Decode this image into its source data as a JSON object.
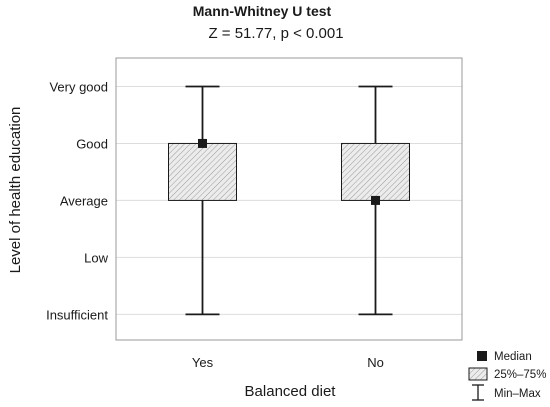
{
  "chart_data": {
    "type": "box",
    "title": "Mann-Whitney U test",
    "subtitle": "Z = 51.77,   p < 0.001",
    "xlabel": "Balanced diet",
    "ylabel": "Level of health education",
    "categories": [
      "Yes",
      "No"
    ],
    "y_ticks": [
      {
        "value": 1,
        "label": "Insufficient"
      },
      {
        "value": 2,
        "label": "Low"
      },
      {
        "value": 3,
        "label": "Average"
      },
      {
        "value": 4,
        "label": "Good"
      },
      {
        "value": 5,
        "label": "Very good"
      }
    ],
    "ylim": [
      0.55,
      5.5
    ],
    "grid": true,
    "boxes": [
      {
        "category": "Yes",
        "min": 1,
        "q1": 3,
        "median": 4,
        "q3": 4,
        "max": 5
      },
      {
        "category": "No",
        "min": 1,
        "q1": 3,
        "median": 3,
        "q3": 4,
        "max": 5
      }
    ],
    "legend": {
      "position": "bottom-right",
      "items": [
        {
          "label": "Median",
          "symbol": "square"
        },
        {
          "label": "25%–75%",
          "symbol": "hatched-box"
        },
        {
          "label": "Min–Max",
          "symbol": "whisker"
        }
      ]
    },
    "colors": {
      "box_fill": "#ececec",
      "hatch": "#9a9a9a",
      "line": "#1a1a1a",
      "grid": "#dddddd",
      "frame": "#9a9a9a"
    }
  }
}
